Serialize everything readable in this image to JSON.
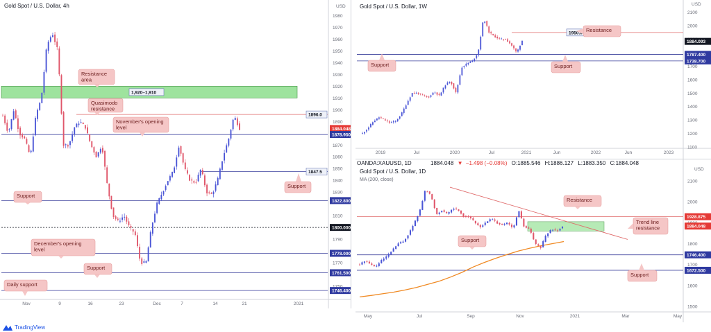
{
  "brand": {
    "label": "TradingView",
    "icon": "tradingview-logo-icon"
  },
  "colors": {
    "up": "#4a55d6",
    "down": "#e0566a",
    "level": "#3a3f9c",
    "resistance": "#e06c6c",
    "zone": "#9ee39e",
    "ma": "#f08a24",
    "label_bg": "#f5c6c6",
    "label_fg": "#6b1d1d",
    "price_red": "#e53935"
  },
  "chart_data": [
    {
      "type": "candlestick",
      "title": "Gold Spot / U.S. Dollar, 4h",
      "currency": "USD",
      "ylim": [
        1740,
        1985
      ],
      "y_ticks": [
        1980,
        1970,
        1960,
        1950,
        1940,
        1930,
        1920,
        1910,
        1900,
        1890,
        1870,
        1860,
        1850,
        1840,
        1830,
        1810,
        1790,
        1770,
        1750
      ],
      "x_ticks": [
        "Nov",
        "9",
        "16",
        "23",
        "Dec",
        "7",
        "14",
        "21",
        "2021"
      ],
      "path": [
        1895,
        1880,
        1900,
        1880,
        1875,
        1860,
        1895,
        1910,
        1955,
        1965,
        1950,
        1870,
        1870,
        1885,
        1890,
        1885,
        1870,
        1860,
        1870,
        1835,
        1810,
        1805,
        1810,
        1800,
        1795,
        1770,
        1770,
        1800,
        1820,
        1830,
        1840,
        1848,
        1870,
        1850,
        1840,
        1838,
        1850,
        1830,
        1828,
        1840,
        1860,
        1875,
        1895,
        1884
      ],
      "price_tags": [
        {
          "label": "1896.0",
          "value": 1896,
          "style": "box"
        },
        {
          "label": "1847.5",
          "value": 1847.5,
          "style": "box"
        },
        {
          "label": "1,920–1,910",
          "value": 1915,
          "style": "box"
        },
        {
          "label": "1884.048",
          "value": 1884.048,
          "style": "red"
        },
        {
          "label": "1878.950",
          "value": 1878.95,
          "style": "blue"
        },
        {
          "label": "1822.800",
          "value": 1822.8,
          "style": "blue"
        },
        {
          "label": "1800.000",
          "value": 1800,
          "style": "black"
        },
        {
          "label": "1778.000",
          "value": 1778,
          "style": "blue"
        },
        {
          "label": "1761.500",
          "value": 1761.5,
          "style": "blue"
        },
        {
          "label": "1746.400",
          "value": 1746.4,
          "style": "blue"
        }
      ],
      "zone": {
        "from": 1910,
        "to": 1920
      },
      "levels": [
        {
          "value": 1896,
          "kind": "resistance"
        },
        {
          "value": 1878.95,
          "kind": "support"
        },
        {
          "value": 1847.5,
          "kind": "support"
        },
        {
          "value": 1822.8,
          "kind": "support"
        },
        {
          "value": 1800,
          "kind": "dotted"
        },
        {
          "value": 1778,
          "kind": "support"
        },
        {
          "value": 1761.5,
          "kind": "support"
        },
        {
          "value": 1746.4,
          "kind": "support"
        }
      ],
      "annotations": [
        "Resistance area",
        "Quasimodo resistance",
        "November's opening level",
        "Support",
        "Support",
        "December's opening level",
        "Support",
        "Daily support"
      ]
    },
    {
      "type": "candlestick",
      "title": "Gold Spot / U.S. Dollar, 1W",
      "currency": "USD",
      "ylim": [
        1100,
        2150
      ],
      "y_ticks": [
        2100,
        2000,
        1900,
        1800,
        1700,
        1600,
        1500,
        1400,
        1300,
        1200,
        1100
      ],
      "x_ticks": [
        "2019",
        "Jul",
        "2020",
        "Jul",
        "2021",
        "Jun",
        "2022",
        "Jun",
        "2023"
      ],
      "path": [
        1200,
        1240,
        1290,
        1320,
        1300,
        1280,
        1290,
        1340,
        1420,
        1500,
        1500,
        1480,
        1470,
        1510,
        1480,
        1560,
        1590,
        1500,
        1690,
        1720,
        1740,
        1800,
        2060,
        1950,
        1920,
        1900,
        1900,
        1860,
        1800,
        1890
      ],
      "price_tags": [
        {
          "label": "1950.0",
          "value": 1950,
          "style": "box"
        },
        {
          "label": "1884.093",
          "value": 1884.093,
          "style": "black"
        },
        {
          "label": "1787.400",
          "value": 1787.4,
          "style": "blue"
        },
        {
          "label": "1738.700",
          "value": 1738.7,
          "style": "blue"
        }
      ],
      "levels": [
        {
          "value": 1950,
          "kind": "resistance"
        },
        {
          "value": 1787.4,
          "kind": "support"
        },
        {
          "value": 1738.7,
          "kind": "support"
        }
      ],
      "annotations": [
        "Resistance",
        "Support",
        "Support"
      ]
    },
    {
      "type": "candlestick",
      "title": "Gold Spot / U.S. Dollar, 1D",
      "symbol": "OANDA:XAUUSD, 1D",
      "quote": {
        "price": "1884.048",
        "change": "−1.498 (−0.08%)",
        "open": "1885.546",
        "high": "1886.127",
        "low": "1883.350",
        "close": "1884.048"
      },
      "ma_label": "MA (200, close)",
      "currency": "USD",
      "ylim": [
        1480,
        2130
      ],
      "y_ticks": [
        2100,
        2000,
        1900,
        1800,
        1700,
        1600,
        1500
      ],
      "x_ticks": [
        "May",
        "Jul",
        "Sep",
        "Nov",
        "2021",
        "Mar",
        "May"
      ],
      "path": [
        1700,
        1720,
        1700,
        1690,
        1720,
        1740,
        1770,
        1800,
        1810,
        1850,
        1900,
        1960,
        2060,
        2030,
        1940,
        1960,
        1940,
        1970,
        1960,
        1930,
        1930,
        1900,
        1880,
        1900,
        1920,
        1900,
        1890,
        1900,
        1870,
        1960,
        1880,
        1870,
        1800,
        1780,
        1840,
        1870,
        1860,
        1884
      ],
      "ma_path": [
        1545,
        1552,
        1560,
        1568,
        1578,
        1590,
        1605,
        1620,
        1640,
        1662,
        1688,
        1710,
        1730,
        1748,
        1765,
        1778,
        1790,
        1800,
        1810
      ],
      "price_tags": [
        {
          "label": "1928.875",
          "value": 1928.875,
          "style": "red"
        },
        {
          "label": "1884.048",
          "value": 1884.048,
          "style": "red"
        },
        {
          "label": "1746.400",
          "value": 1746.4,
          "style": "blue"
        },
        {
          "label": "1672.500",
          "value": 1672.5,
          "style": "blue"
        }
      ],
      "zone": {
        "from": 1860,
        "to": 1905
      },
      "levels": [
        {
          "value": 1928.875,
          "kind": "resistance"
        },
        {
          "value": 1746.4,
          "kind": "support"
        },
        {
          "value": 1672.5,
          "kind": "support"
        }
      ],
      "annotations": [
        "Resistance",
        "Trend line resistance",
        "Support",
        "Support"
      ]
    }
  ]
}
